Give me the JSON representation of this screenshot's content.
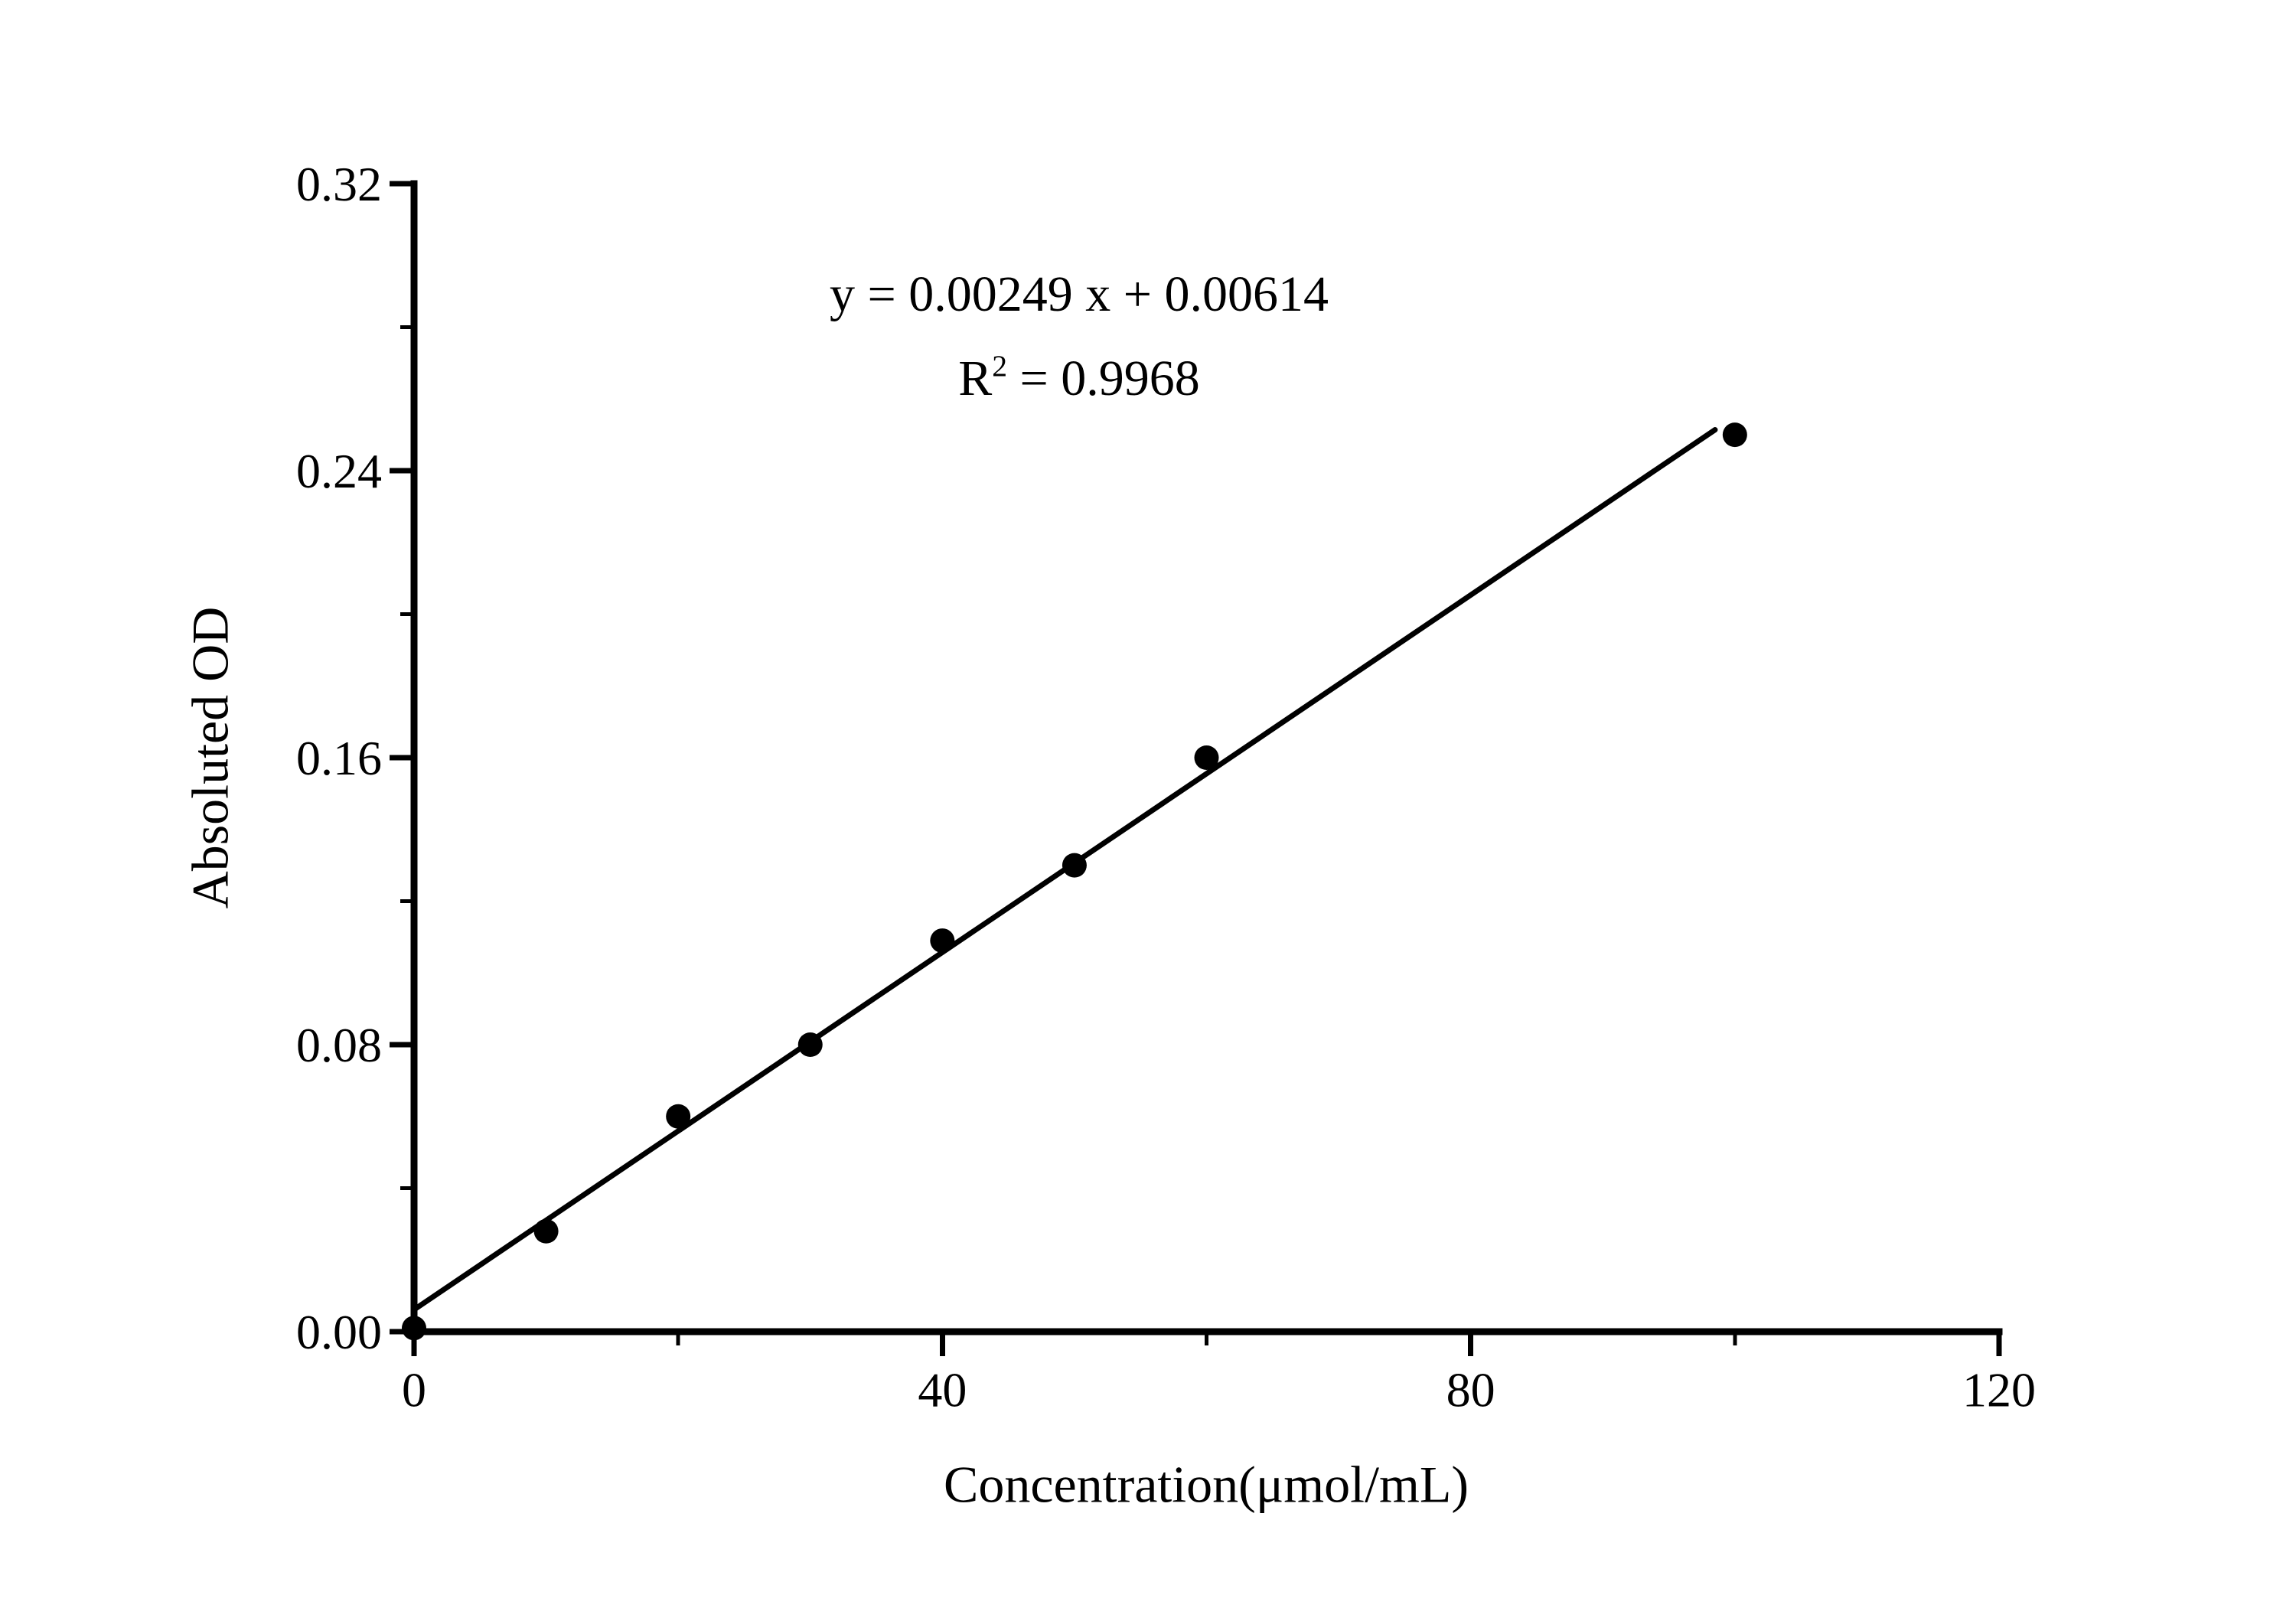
{
  "page": {
    "background_color": "#ffffff",
    "foreground_color": "#000000"
  },
  "chart_data": {
    "type": "scatter",
    "title": "",
    "xlabel": "Concentration(μmol/mL)",
    "ylabel": "Absoluted OD",
    "x": [
      0,
      10,
      20,
      30,
      40,
      50,
      60,
      100
    ],
    "y": [
      0.001,
      0.028,
      0.06,
      0.08,
      0.109,
      0.13,
      0.16,
      0.25
    ],
    "fit_line": {
      "slope": 0.00249,
      "intercept": 0.00614,
      "x_start": 0,
      "x_end": 98.5
    },
    "annotation": {
      "equation": "y = 0.00249 x + 0.00614",
      "r2_base": "R",
      "r2_exponent": "2",
      "r2_rest": " = 0.9968"
    },
    "x_axis": {
      "range": [
        0,
        120
      ],
      "major_ticks": [
        0,
        40,
        80,
        120
      ],
      "minor_ticks": [
        20,
        60,
        100
      ],
      "tick_labels": [
        "0",
        "40",
        "80",
        "120"
      ]
    },
    "y_axis": {
      "range": [
        0,
        0.32
      ],
      "major_ticks": [
        0,
        0.08,
        0.16,
        0.24,
        0.32
      ],
      "minor_ticks": [
        0.04,
        0.12,
        0.2,
        0.28
      ],
      "tick_labels": [
        "0.00",
        "0.08",
        "0.16",
        "0.24",
        "0.32"
      ]
    },
    "grid": false,
    "legend": null,
    "marker": {
      "shape": "circle",
      "color": "#000000",
      "radius_px": 16
    },
    "line_color": "#000000"
  }
}
